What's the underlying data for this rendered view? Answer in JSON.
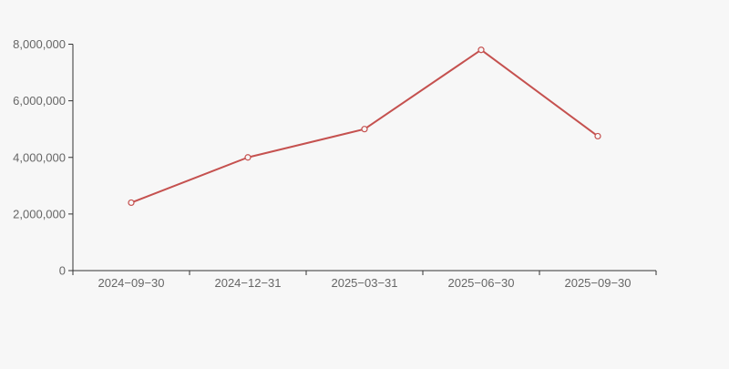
{
  "colors": {
    "background": "#f7f7f7",
    "axis": "#333333",
    "tick_label": "#666666",
    "line": "#c5514f",
    "marker_fill": "#f7f7f7"
  },
  "chart_data": {
    "type": "line",
    "title": "",
    "xlabel": "",
    "ylabel": "",
    "categories": [
      "2024−09−30",
      "2024−12−31",
      "2025−03−31",
      "2025−06−30",
      "2025−09−30"
    ],
    "values": [
      2400000,
      4000000,
      5000000,
      7800000,
      4750000
    ],
    "ylim": [
      0,
      8000000
    ],
    "yticks": [
      0,
      2000000,
      4000000,
      6000000,
      8000000
    ],
    "ytick_labels": [
      "0",
      "2,000,000",
      "4,000,000",
      "6,000,000",
      "8,000,000"
    ],
    "grid": false,
    "legend": "none",
    "marker": "empty-circle",
    "x_axis_ticks_at_band_edges": true
  }
}
